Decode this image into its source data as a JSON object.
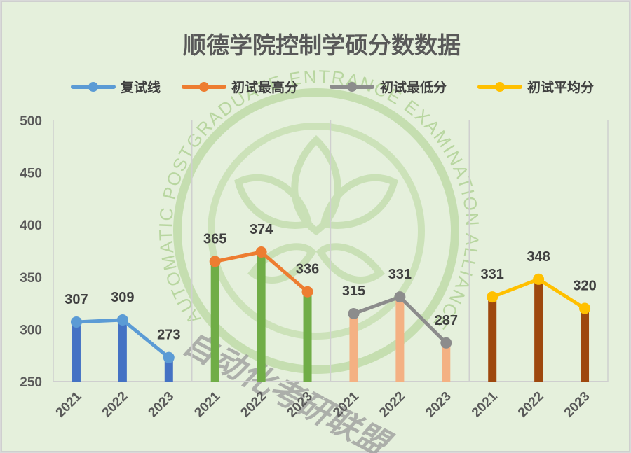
{
  "title": "顺德学院控制学硕分数数据",
  "legend": [
    {
      "label": "复试线",
      "color": "#5b9bd5"
    },
    {
      "label": "初试最高分",
      "color": "#ed7d31"
    },
    {
      "label": "初试最低分",
      "color": "#8c8c8c"
    },
    {
      "label": "初试平均分",
      "color": "#ffc000"
    }
  ],
  "y_axis": {
    "ticks": [
      "500",
      "450",
      "400",
      "350",
      "300",
      "250"
    ]
  },
  "watermark": {
    "ring_text": "AUTOMATIC POSTGRADUATE ENTRANCE EXAMINATION ALLIANCE",
    "chinese_text": "自动化考研联盟"
  },
  "chart_data": {
    "type": "bar",
    "title": "顺德学院控制学硕分数数据",
    "xlabel": "",
    "ylabel": "",
    "ylim": [
      250,
      500
    ],
    "yticks": [
      250,
      300,
      350,
      400,
      450,
      500
    ],
    "grid": "vertical separators between groups",
    "legend_position": "top",
    "categories": [
      "2021",
      "2022",
      "2023"
    ],
    "series": [
      {
        "name": "复试线",
        "values": [
          307,
          309,
          273
        ],
        "line_color": "#5b9bd5",
        "bar_color": "#4472c4"
      },
      {
        "name": "初试最高分",
        "values": [
          365,
          374,
          336
        ],
        "line_color": "#ed7d31",
        "bar_color": "#70ad47"
      },
      {
        "name": "初试最低分",
        "values": [
          315,
          331,
          287
        ],
        "line_color": "#8c8c8c",
        "bar_color": "#f4b183"
      },
      {
        "name": "初试平均分",
        "values": [
          331,
          348,
          320
        ],
        "line_color": "#ffc000",
        "bar_color": "#9e480e"
      }
    ],
    "x_labels": [
      "2021",
      "2022",
      "2023",
      "2021",
      "2022",
      "2023",
      "2021",
      "2022",
      "2023",
      "2021",
      "2022",
      "2023"
    ]
  }
}
